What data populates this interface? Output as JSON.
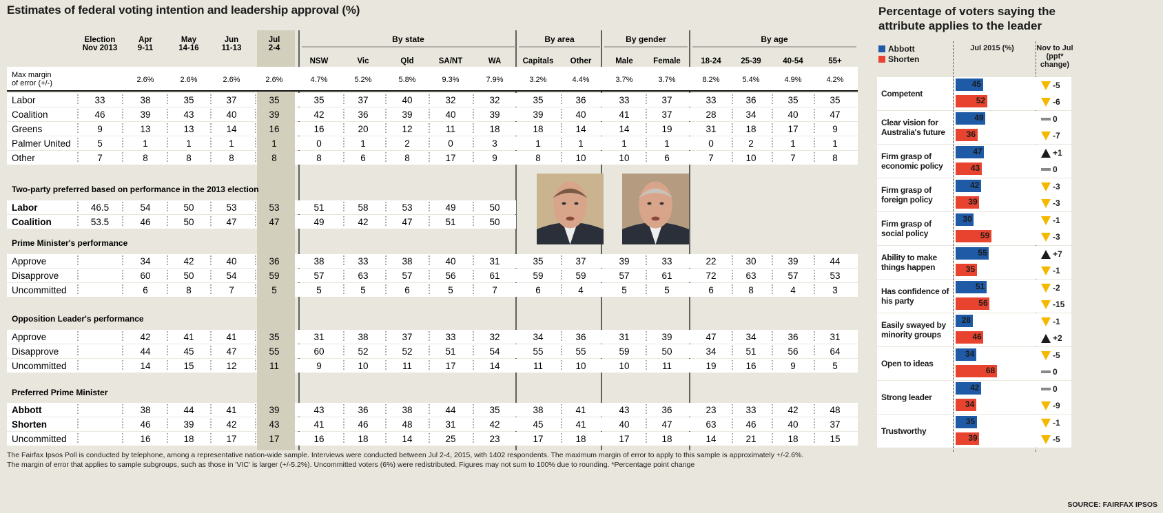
{
  "title": "Estimates of federal voting intention and leadership approval (%)",
  "chart_data": [
    {
      "type": "table",
      "title": "Estimates of federal voting intention and leadership approval (%)",
      "column_groups": [
        {
          "label": "",
          "span": 5
        },
        {
          "label": "By state",
          "span": 5
        },
        {
          "label": "By area",
          "span": 2
        },
        {
          "label": "By gender",
          "span": 2
        },
        {
          "label": "By age",
          "span": 4
        }
      ],
      "columns": [
        "Election Nov 2013",
        "Apr 9-11",
        "May 14-16",
        "Jun 11-13",
        "Jul 2-4",
        "NSW",
        "Vic",
        "Qld",
        "SA/NT",
        "WA",
        "Capitals",
        "Other",
        "Male",
        "Female",
        "18-24",
        "25-39",
        "40-54",
        "55+"
      ],
      "margin_label": "Max margin of error (+/-)",
      "margin": [
        "",
        "2.6%",
        "2.6%",
        "2.6%",
        "2.6%",
        "4.7%",
        "5.2%",
        "5.8%",
        "9.3%",
        "7.9%",
        "3.2%",
        "4.4%",
        "3.7%",
        "3.7%",
        "8.2%",
        "5.4%",
        "4.9%",
        "4.2%"
      ],
      "sections": [
        {
          "heading": "",
          "rows": [
            {
              "label": "Labor",
              "values": [
                "33",
                "38",
                "35",
                "37",
                "35",
                "35",
                "37",
                "40",
                "32",
                "32",
                "35",
                "36",
                "33",
                "37",
                "33",
                "36",
                "35",
                "35"
              ]
            },
            {
              "label": "Coalition",
              "values": [
                "46",
                "39",
                "43",
                "40",
                "39",
                "42",
                "36",
                "39",
                "40",
                "39",
                "39",
                "40",
                "41",
                "37",
                "28",
                "34",
                "40",
                "47"
              ]
            },
            {
              "label": "Greens",
              "values": [
                "9",
                "13",
                "13",
                "14",
                "16",
                "16",
                "20",
                "12",
                "11",
                "18",
                "18",
                "14",
                "14",
                "19",
                "31",
                "18",
                "17",
                "9"
              ]
            },
            {
              "label": "Palmer United",
              "values": [
                "5",
                "1",
                "1",
                "1",
                "1",
                "0",
                "1",
                "2",
                "0",
                "3",
                "1",
                "1",
                "1",
                "1",
                "0",
                "2",
                "1",
                "1"
              ]
            },
            {
              "label": "Other",
              "values": [
                "7",
                "8",
                "8",
                "8",
                "8",
                "8",
                "6",
                "8",
                "17",
                "9",
                "8",
                "10",
                "10",
                "6",
                "7",
                "10",
                "7",
                "8"
              ]
            }
          ]
        },
        {
          "heading": "Two-party preferred based on performance in the 2013 election",
          "rows": [
            {
              "label": "Labor",
              "bold": true,
              "values": [
                "46.5",
                "54",
                "50",
                "53",
                "53",
                "51",
                "58",
                "53",
                "49",
                "50",
                "",
                "",
                "",
                "",
                "",
                "",
                "",
                ""
              ]
            },
            {
              "label": "Coalition",
              "bold": true,
              "values": [
                "53.5",
                "46",
                "50",
                "47",
                "47",
                "49",
                "42",
                "47",
                "51",
                "50",
                "",
                "",
                "",
                "",
                "",
                "",
                "",
                ""
              ]
            }
          ]
        },
        {
          "heading": "Prime Minister's performance",
          "rows": [
            {
              "label": "Approve",
              "values": [
                "",
                "34",
                "42",
                "40",
                "36",
                "38",
                "33",
                "38",
                "40",
                "31",
                "35",
                "37",
                "39",
                "33",
                "22",
                "30",
                "39",
                "44"
              ]
            },
            {
              "label": "Disapprove",
              "values": [
                "",
                "60",
                "50",
                "54",
                "59",
                "57",
                "63",
                "57",
                "56",
                "61",
                "59",
                "59",
                "57",
                "61",
                "72",
                "63",
                "57",
                "53"
              ]
            },
            {
              "label": "Uncommitted",
              "values": [
                "",
                "6",
                "8",
                "7",
                "5",
                "5",
                "5",
                "6",
                "5",
                "7",
                "6",
                "4",
                "5",
                "5",
                "6",
                "8",
                "4",
                "3"
              ]
            }
          ]
        },
        {
          "heading": "Opposition Leader's performance",
          "rows": [
            {
              "label": "Approve",
              "values": [
                "",
                "42",
                "41",
                "41",
                "35",
                "31",
                "38",
                "37",
                "33",
                "32",
                "34",
                "36",
                "31",
                "39",
                "47",
                "34",
                "36",
                "31"
              ]
            },
            {
              "label": "Disapprove",
              "values": [
                "",
                "44",
                "45",
                "47",
                "55",
                "60",
                "52",
                "52",
                "51",
                "54",
                "55",
                "55",
                "59",
                "50",
                "34",
                "51",
                "56",
                "64"
              ]
            },
            {
              "label": "Uncommitted",
              "values": [
                "",
                "14",
                "15",
                "12",
                "11",
                "9",
                "10",
                "11",
                "17",
                "14",
                "11",
                "10",
                "10",
                "11",
                "19",
                "16",
                "9",
                "5"
              ]
            }
          ]
        },
        {
          "heading": "Preferred Prime Minister",
          "rows": [
            {
              "label": "Abbott",
              "bold": true,
              "values": [
                "",
                "38",
                "44",
                "41",
                "39",
                "43",
                "36",
                "38",
                "44",
                "35",
                "38",
                "41",
                "43",
                "36",
                "23",
                "33",
                "42",
                "48"
              ]
            },
            {
              "label": "Shorten",
              "bold": true,
              "values": [
                "",
                "46",
                "39",
                "42",
                "43",
                "41",
                "46",
                "48",
                "31",
                "42",
                "45",
                "41",
                "40",
                "47",
                "63",
                "46",
                "40",
                "37"
              ]
            },
            {
              "label": "Uncommitted",
              "values": [
                "",
                "16",
                "18",
                "17",
                "17",
                "16",
                "18",
                "14",
                "25",
                "23",
                "17",
                "18",
                "17",
                "18",
                "14",
                "21",
                "18",
                "15"
              ]
            }
          ]
        }
      ]
    },
    {
      "type": "bar",
      "title": "Percentage of voters saying the attribute applies to the leader",
      "columns": {
        "current": "Jul 2015 (%)",
        "change": "Nov to Jul (ppt* change)"
      },
      "series_names": [
        "Abbott",
        "Shorten"
      ],
      "colors": {
        "Abbott": "#1f5aa6",
        "Shorten": "#e8432e",
        "down": "#f5b800",
        "up": "#1b1b1b",
        "nochange": "#888888"
      },
      "categories": [
        "Competent",
        "Clear vision for Australia's future",
        "Firm grasp of economic policy",
        "Firm grasp of foreign policy",
        "Firm grasp of social policy",
        "Ability to make things happen",
        "Has confidence of his party",
        "Easily swayed by minority groups",
        "Open to ideas",
        "Strong leader",
        "Trustworthy"
      ],
      "series": [
        {
          "name": "Abbott",
          "values": [
            45,
            49,
            47,
            42,
            30,
            55,
            51,
            28,
            34,
            42,
            35
          ],
          "change": [
            "-5",
            "0",
            "+1",
            "-3",
            "-1",
            "+7",
            "-2",
            "-1",
            "-5",
            "0",
            "-1"
          ]
        },
        {
          "name": "Shorten",
          "values": [
            52,
            36,
            43,
            39,
            59,
            35,
            56,
            46,
            68,
            34,
            39
          ],
          "change": [
            "-6",
            "-7",
            "0",
            "-3",
            "-3",
            "-1",
            "-15",
            "+2",
            "0",
            "-9",
            "-5"
          ]
        }
      ],
      "xlim": [
        0,
        75
      ]
    }
  ],
  "legend": {
    "abbott": "Abbott",
    "shorten": "Shorten"
  },
  "footnotes": [
    "The Fairfax Ipsos Poll is conducted by telephone, among a representative nation-wide sample. Interviews were conducted between Jul 2-4, 2015, with 1402 respondents. The maximum margin of error to apply to this sample is approximately +/-2.6%.",
    "The margin of error that applies to sample subgroups, such as those in 'VIC' is larger (+/-5.2%). Uncommitted voters (6%) were redistributed. Figures may not sum to 100% due to rounding. *Percentage point change"
  ],
  "source": "SOURCE: FAIRFAX IPSOS",
  "photos": {
    "left": "Tony Abbott portrait",
    "right": "Bill Shorten portrait"
  }
}
